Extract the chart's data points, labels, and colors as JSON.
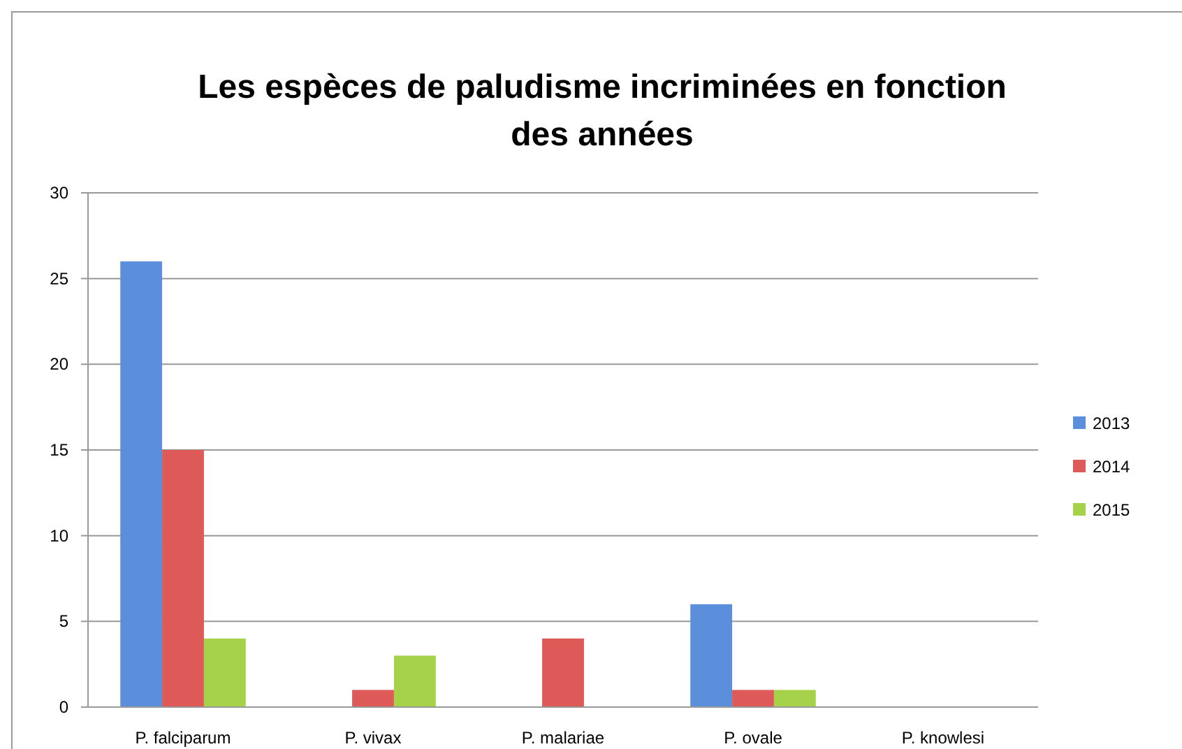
{
  "chart_data": {
    "type": "bar",
    "title": "Les espèces de paludisme incriminées en fonction des années",
    "categories": [
      "P. falciparum",
      "P. vivax",
      "P. malariae",
      "P. ovale",
      "P. knowlesi"
    ],
    "series": [
      {
        "name": "2013",
        "color": "#5b8fdc",
        "values": [
          26,
          0,
          0,
          6,
          0
        ]
      },
      {
        "name": "2014",
        "color": "#dd5a58",
        "values": [
          15,
          1,
          4,
          1,
          0
        ]
      },
      {
        "name": "2015",
        "color": "#a6d14a",
        "values": [
          4,
          3,
          0,
          1,
          0
        ]
      }
    ],
    "ylim": [
      0,
      30
    ],
    "yticks": [
      0,
      5,
      10,
      15,
      20,
      25,
      30
    ],
    "grid": "y",
    "legend": "right"
  }
}
